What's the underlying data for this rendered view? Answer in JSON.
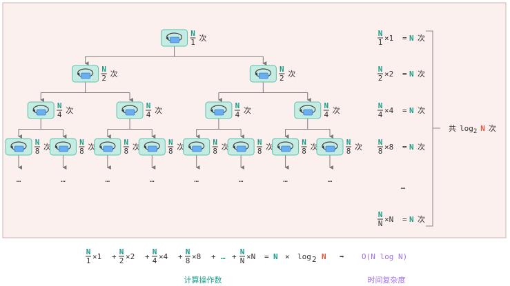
{
  "colors": {
    "panel_bg": "#fcf0ef",
    "panel_border": "#c8b4b2",
    "node_fill": "#c4ece2",
    "node_border": "#5fbfa8",
    "inner_rect": "#6aaef0",
    "accent_n": "#1a9e8a",
    "accent_red": "#e8553a",
    "accent_purple": "#a070e8",
    "line": "#777777"
  },
  "icons": {
    "node": "loop-icon"
  },
  "tree": {
    "numerator": "N",
    "times_char": "次",
    "levels": [
      {
        "denominator": "1",
        "count": 1
      },
      {
        "denominator": "2",
        "count": 2
      },
      {
        "denominator": "4",
        "count": 4
      },
      {
        "denominator": "8",
        "count": 8
      }
    ],
    "ellipsis": "…"
  },
  "sums": {
    "rows": [
      {
        "num": "N",
        "den": "1",
        "mult": "×1",
        "eq": "=",
        "res": "N",
        "unit": "次"
      },
      {
        "num": "N",
        "den": "2",
        "mult": "×2",
        "eq": "=",
        "res": "N",
        "unit": "次"
      },
      {
        "num": "N",
        "den": "4",
        "mult": "×4",
        "eq": "=",
        "res": "N",
        "unit": "次"
      },
      {
        "num": "N",
        "den": "8",
        "mult": "×8",
        "eq": "=",
        "res": "N",
        "unit": "次"
      },
      {
        "num": "N",
        "den": "N",
        "mult": "×N",
        "eq": "=",
        "res": "N",
        "unit": "次"
      }
    ],
    "ellipsis": "…",
    "total_prefix": "共",
    "total_log": "log",
    "total_base": "2",
    "total_n": "N",
    "total_unit": "次"
  },
  "formula": {
    "terms": [
      {
        "num": "N",
        "den": "1",
        "mult": "×1"
      },
      {
        "num": "N",
        "den": "2",
        "mult": "×2"
      },
      {
        "num": "N",
        "den": "4",
        "mult": "×4"
      },
      {
        "num": "N",
        "den": "8",
        "mult": "×8"
      }
    ],
    "plus": "+",
    "ellipsis": "…",
    "last": {
      "num": "N",
      "den": "N",
      "mult": "×N"
    },
    "eq": "=",
    "n": "N",
    "times": "×",
    "log": "log",
    "base": "2",
    "n2": "N",
    "arrow": "➡",
    "complexity": "O(N log N)",
    "caption_ops": "计算操作数",
    "caption_complexity": "时间复杂度"
  }
}
